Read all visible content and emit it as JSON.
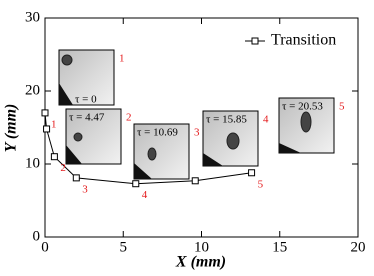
{
  "chart_data": {
    "type": "line",
    "x_label": "X (mm)",
    "y_label": "Y (mm)",
    "x": [
      0,
      0.1,
      0.6,
      2.0,
      5.8,
      9.6,
      13.2
    ],
    "series": [
      {
        "name": "Transition",
        "color": "#000000",
        "values": [
          17.0,
          14.8,
          11.0,
          8.1,
          7.3,
          7.7,
          8.8
        ]
      }
    ],
    "point_labels": [
      "1",
      null,
      "2",
      "3",
      "4",
      null,
      "5"
    ],
    "label_color": "#e41a1c",
    "xlim": [
      0,
      20
    ],
    "xticks": [
      0,
      5,
      10,
      15,
      20
    ],
    "ylim": [
      0,
      30
    ],
    "yticks": [
      0,
      10,
      20,
      30
    ],
    "legend": "upper right",
    "insets": [
      {
        "label": "1",
        "tau": "τ = 0"
      },
      {
        "label": "2",
        "tau": "τ = 4.47"
      },
      {
        "label": "3",
        "tau": "τ = 10.69"
      },
      {
        "label": "4",
        "tau": "τ = 15.85"
      },
      {
        "label": "5",
        "tau": "τ = 20.53"
      }
    ]
  }
}
